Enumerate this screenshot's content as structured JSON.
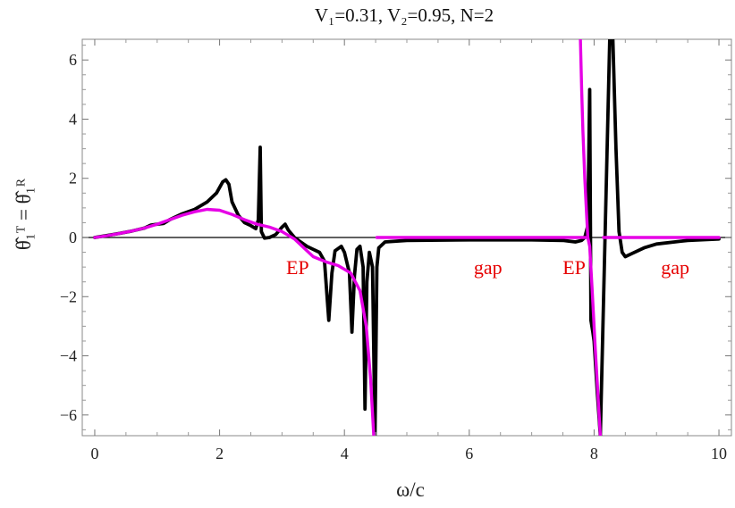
{
  "chart_data": {
    "type": "line",
    "title": "V₁=0.31,  V₂=0.95,  N=2",
    "xlabel": "ω/c",
    "ylabel": "θ̂₁ᵀ = θ̂₁ᴿ",
    "xlim": [
      -0.2,
      10.2
    ],
    "ylim": [
      -6.7,
      6.7
    ],
    "x_ticks": [
      0,
      2,
      4,
      6,
      8,
      10
    ],
    "y_ticks": [
      -6,
      -4,
      -2,
      0,
      2,
      4,
      6
    ],
    "grid": false,
    "zero_line": true,
    "annotations": [
      {
        "text": "EP",
        "x": 3.25,
        "y": -1.0
      },
      {
        "text": "gap",
        "x": 6.3,
        "y": -1.0
      },
      {
        "text": "EP",
        "x": 7.68,
        "y": -1.0
      },
      {
        "text": "gap",
        "x": 9.3,
        "y": -1.0
      }
    ],
    "series": [
      {
        "color": "#000000",
        "points": [
          [
            0,
            0
          ],
          [
            0.2,
            0.07
          ],
          [
            0.4,
            0.14
          ],
          [
            0.6,
            0.22
          ],
          [
            0.8,
            0.32
          ],
          [
            0.9,
            0.42
          ],
          [
            1.0,
            0.45
          ],
          [
            1.1,
            0.47
          ],
          [
            1.2,
            0.6
          ],
          [
            1.4,
            0.8
          ],
          [
            1.6,
            0.95
          ],
          [
            1.8,
            1.2
          ],
          [
            1.95,
            1.5
          ],
          [
            2.05,
            1.88
          ],
          [
            2.1,
            1.95
          ],
          [
            2.15,
            1.8
          ],
          [
            2.2,
            1.2
          ],
          [
            2.3,
            0.75
          ],
          [
            2.4,
            0.5
          ],
          [
            2.5,
            0.4
          ],
          [
            2.58,
            0.3
          ],
          [
            2.62,
            0.6
          ],
          [
            2.65,
            3.05
          ],
          [
            2.67,
            0.2
          ],
          [
            2.72,
            -0.02
          ],
          [
            2.8,
            0.0
          ],
          [
            2.9,
            0.1
          ],
          [
            3.0,
            0.35
          ],
          [
            3.05,
            0.45
          ],
          [
            3.1,
            0.25
          ],
          [
            3.2,
            0.0
          ],
          [
            3.3,
            -0.15
          ],
          [
            3.4,
            -0.3
          ],
          [
            3.5,
            -0.4
          ],
          [
            3.6,
            -0.5
          ],
          [
            3.68,
            -0.8
          ],
          [
            3.75,
            -2.8
          ],
          [
            3.8,
            -1.2
          ],
          [
            3.85,
            -0.45
          ],
          [
            3.95,
            -0.3
          ],
          [
            4.0,
            -0.5
          ],
          [
            4.08,
            -1.2
          ],
          [
            4.12,
            -3.2
          ],
          [
            4.16,
            -1.3
          ],
          [
            4.2,
            -0.4
          ],
          [
            4.25,
            -0.3
          ],
          [
            4.3,
            -1.0
          ],
          [
            4.33,
            -5.8
          ],
          [
            4.36,
            -1.5
          ],
          [
            4.4,
            -0.5
          ],
          [
            4.45,
            -1.0
          ],
          [
            4.49,
            -6.7
          ],
          [
            4.52,
            -1.0
          ],
          [
            4.55,
            -0.35
          ],
          [
            4.65,
            -0.15
          ],
          [
            5.0,
            -0.1
          ],
          [
            6.0,
            -0.08
          ],
          [
            7.0,
            -0.08
          ],
          [
            7.5,
            -0.1
          ],
          [
            7.7,
            -0.15
          ],
          [
            7.8,
            -0.1
          ],
          [
            7.85,
            0.0
          ],
          [
            7.9,
            0.4
          ],
          [
            7.93,
            5.0
          ],
          [
            7.95,
            -2.8
          ],
          [
            7.98,
            -3.2
          ],
          [
            8.0,
            -3.5
          ],
          [
            8.05,
            -5.2
          ],
          [
            8.1,
            -6.7
          ],
          [
            8.25,
            6.7
          ],
          [
            8.3,
            6.7
          ],
          [
            8.35,
            3.0
          ],
          [
            8.4,
            0.2
          ],
          [
            8.45,
            -0.5
          ],
          [
            8.5,
            -0.65
          ],
          [
            8.6,
            -0.55
          ],
          [
            8.8,
            -0.35
          ],
          [
            9.0,
            -0.22
          ],
          [
            9.5,
            -0.1
          ],
          [
            10.0,
            -0.05
          ]
        ]
      },
      {
        "color": "#e600e6",
        "points": [
          [
            0,
            0
          ],
          [
            0.2,
            0.06
          ],
          [
            0.4,
            0.14
          ],
          [
            0.6,
            0.22
          ],
          [
            0.8,
            0.32
          ],
          [
            1.0,
            0.45
          ],
          [
            1.2,
            0.6
          ],
          [
            1.4,
            0.75
          ],
          [
            1.6,
            0.87
          ],
          [
            1.8,
            0.95
          ],
          [
            2.0,
            0.92
          ],
          [
            2.2,
            0.78
          ],
          [
            2.4,
            0.6
          ],
          [
            2.6,
            0.45
          ],
          [
            2.8,
            0.35
          ],
          [
            3.0,
            0.2
          ],
          [
            3.2,
            -0.05
          ],
          [
            3.35,
            -0.35
          ],
          [
            3.5,
            -0.65
          ],
          [
            3.7,
            -0.82
          ],
          [
            3.9,
            -0.95
          ],
          [
            4.1,
            -1.2
          ],
          [
            4.25,
            -1.8
          ],
          [
            4.35,
            -3.0
          ],
          [
            4.42,
            -4.8
          ],
          [
            4.47,
            -6.7
          ],
          [
            4.52,
            0
          ],
          [
            7.9,
            0
          ],
          [
            7.93,
            -0.3
          ],
          [
            7.97,
            -1.8
          ],
          [
            8.02,
            -3.8
          ],
          [
            8.1,
            -6.7
          ],
          [
            8.15,
            0
          ],
          [
            10.0,
            0
          ]
        ],
        "jumps": [
          [
            4.47,
            4.52
          ],
          [
            7.93,
            7.93
          ]
        ],
        "extra_segments": [
          [
            [
              7.78,
              6.7
            ],
            [
              7.8,
              5.0
            ],
            [
              7.82,
              3.6
            ],
            [
              7.85,
              2.0
            ],
            [
              7.88,
              0.8
            ],
            [
              7.9,
              0.0
            ]
          ]
        ]
      }
    ]
  }
}
